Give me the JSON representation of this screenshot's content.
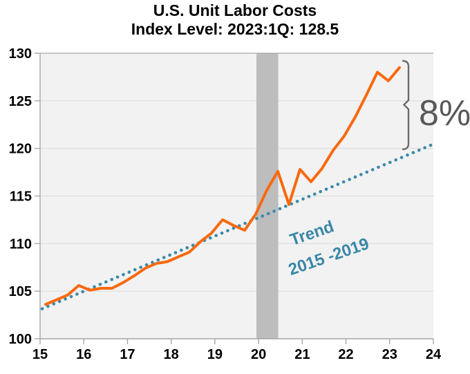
{
  "title": {
    "line1": "U.S. Unit Labor Costs",
    "line2": "Index Level: 2023:1Q:  128.5"
  },
  "chart_data": {
    "type": "line",
    "title": "U.S. Unit Labor Costs, Index Level: 2023:1Q: 128.5",
    "xlabel": "",
    "ylabel": "",
    "x_axis": {
      "range": [
        15,
        24
      ],
      "tick_labels": [
        "15",
        "16",
        "17",
        "18",
        "19",
        "20",
        "21",
        "22",
        "23",
        "24"
      ]
    },
    "y_axis": {
      "range": [
        100,
        130
      ],
      "tick_labels": [
        "100",
        "105",
        "110",
        "115",
        "120",
        "125",
        "130"
      ],
      "tick_values": [
        100,
        105,
        110,
        115,
        120,
        125,
        130
      ]
    },
    "grid": "horizontal-only",
    "series": [
      {
        "name": "Unit Labor Costs",
        "style": "solid",
        "color": "#f8690d",
        "x": [
          "2015Q1",
          "2015Q2",
          "2015Q3",
          "2015Q4",
          "2016Q1",
          "2016Q2",
          "2016Q3",
          "2016Q4",
          "2017Q1",
          "2017Q2",
          "2017Q3",
          "2017Q4",
          "2018Q1",
          "2018Q2",
          "2018Q3",
          "2018Q4",
          "2019Q1",
          "2019Q2",
          "2019Q3",
          "2019Q4",
          "2020Q1",
          "2020Q2",
          "2020Q3",
          "2020Q4",
          "2021Q1",
          "2021Q2",
          "2021Q3",
          "2021Q4",
          "2022Q1",
          "2022Q2",
          "2022Q3",
          "2022Q4",
          "2023Q1"
        ],
        "values": [
          103.6,
          104.1,
          104.6,
          105.6,
          105.1,
          105.3,
          105.3,
          105.9,
          106.6,
          107.4,
          107.9,
          108.1,
          108.6,
          109.1,
          110.2,
          111.1,
          112.5,
          111.9,
          111.4,
          113.1,
          115.6,
          117.6,
          114.1,
          117.8,
          116.5,
          117.9,
          119.8,
          121.3,
          123.3,
          125.6,
          128.0,
          127.1,
          128.5
        ]
      },
      {
        "name": "Trend 2015 -2019",
        "style": "dotted",
        "color": "#3d8aaa",
        "line": {
          "start_year": 15.0,
          "start_value": 103.15,
          "end_year": 24.0,
          "end_value": 120.45
        }
      }
    ],
    "recession_band": {
      "from_year": 19.95,
      "to_year": 20.45,
      "color": "#bdbdbd"
    },
    "annotations": {
      "gap_label": "8%",
      "gap_label_color": "#595959",
      "bracket_color": "#6b6b6b",
      "trend_label_line1": "Trend",
      "trend_label_line2": "2015 -2019",
      "trend_label_color": "#3a87a8"
    }
  },
  "colors": {
    "plot_background": "#f2f2f2",
    "gridline": "#dcdcdc",
    "axis": "#a6a6a6",
    "tick_label": "#000000",
    "title": "#000000"
  }
}
